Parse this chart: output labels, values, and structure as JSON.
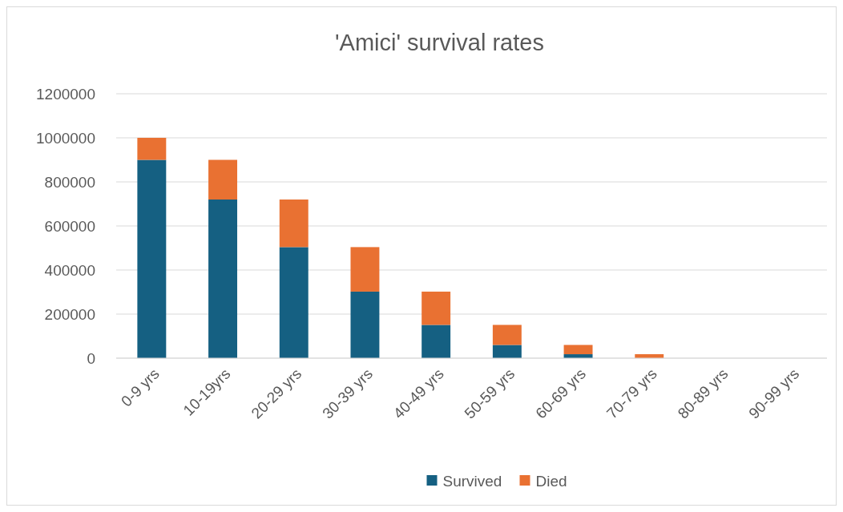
{
  "chart_data": {
    "type": "bar",
    "title": "'Amici' survival rates",
    "categories": [
      "0-9 yrs",
      "10-19yrs",
      "20-29 yrs",
      "30-39 yrs",
      "40-49 yrs",
      "50-59 yrs",
      "60-69 yrs",
      "70-79 yrs",
      "80-89 yrs",
      "90-99 yrs"
    ],
    "series": [
      {
        "name": "Survived",
        "color": "#156082",
        "values": [
          900000,
          720000,
          504000,
          302000,
          151000,
          60000,
          18000,
          null,
          0,
          0
        ]
      },
      {
        "name": "Died",
        "color": "#e97132",
        "values": [
          100000,
          180000,
          216000,
          202000,
          151000,
          91000,
          42000,
          18000,
          0,
          0
        ]
      }
    ],
    "stacked": true,
    "ylim": [
      0,
      1200000
    ],
    "yticks": [
      0,
      200000,
      400000,
      600000,
      800000,
      1000000,
      1200000
    ],
    "grid": "y",
    "legend": "bottom"
  }
}
